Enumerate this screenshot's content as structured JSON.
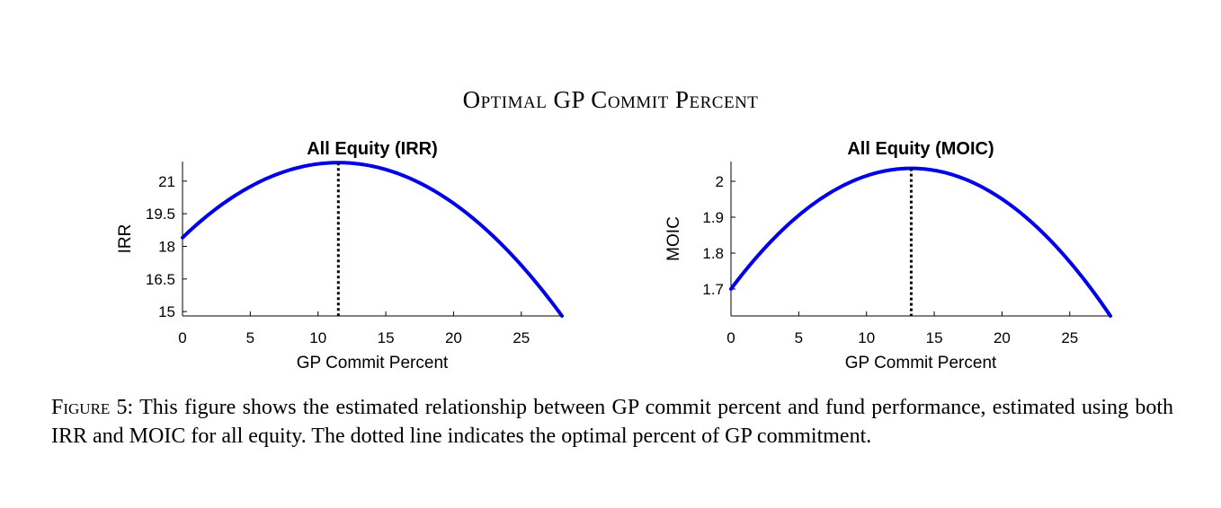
{
  "figure": {
    "title": "Optimal GP Commit Percent",
    "caption_label": "Figure 5:",
    "caption_text": "This figure shows the estimated relationship between GP commit percent and fund performance, estimated using both IRR and MOIC for all equity.  The dotted line indicates the optimal percent of GP commitment."
  },
  "colors": {
    "curve": "#0000e6",
    "axis": "#000000",
    "optimum_line": "#000000"
  },
  "chart_data": [
    {
      "type": "line",
      "title": "All Equity (IRR)",
      "xlabel": "GP Commit Percent",
      "ylabel": "IRR",
      "xlim": [
        0,
        28
      ],
      "ylim": [
        14.8,
        21.9
      ],
      "xticks": [
        0,
        5,
        10,
        15,
        20,
        25
      ],
      "yticks": [
        15,
        16.5,
        18,
        19.5,
        21
      ],
      "ytick_labels": [
        "15",
        "16.5",
        "18",
        "19.5",
        "21"
      ],
      "curve": {
        "x_start": 0,
        "x_end": 28,
        "x_optimal": 11.5,
        "y_start": 18.4,
        "y_optimal": 21.85,
        "y_end": 14.8
      },
      "optimum": {
        "x": 11.5,
        "style": "dotted"
      }
    },
    {
      "type": "line",
      "title": "All Equity (MOIC)",
      "xlabel": "GP Commit Percent",
      "ylabel": "MOIC",
      "xlim": [
        0,
        28
      ],
      "ylim": [
        1.625,
        2.055
      ],
      "xticks": [
        0,
        5,
        10,
        15,
        20,
        25
      ],
      "yticks": [
        1.7,
        1.8,
        1.9,
        2
      ],
      "ytick_labels": [
        "1.7",
        "1.8",
        "1.9",
        "2"
      ],
      "curve": {
        "x_start": 0,
        "x_end": 28,
        "x_optimal": 13.3,
        "y_start": 1.7,
        "y_optimal": 2.036,
        "y_end": 1.625
      },
      "optimum": {
        "x": 13.3,
        "style": "dotted"
      }
    }
  ]
}
